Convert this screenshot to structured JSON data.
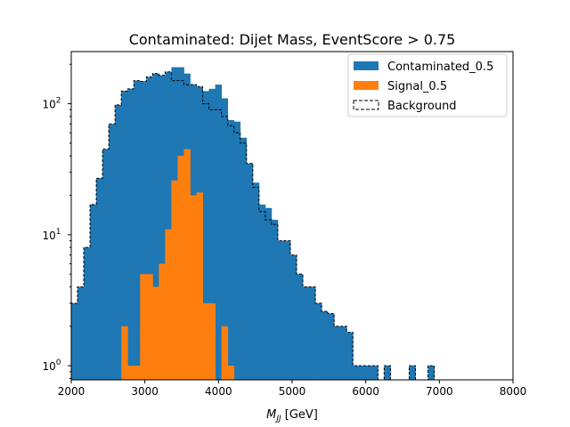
{
  "chart_data": {
    "type": "histogram",
    "title": "Contaminated: Dijet Mass, EventScore > 0.75",
    "xlabel_main": "M",
    "xlabel_sub": "JJ",
    "xlabel_unit": " [GeV]",
    "xlim": [
      2000,
      8000
    ],
    "ylim": [
      0.78,
      250
    ],
    "yscale": "log",
    "grid": false,
    "legend_position": "top-right",
    "x_ticks": [
      2000,
      3000,
      4000,
      5000,
      6000,
      7000,
      8000
    ],
    "x_tick_labels": [
      "2000",
      "3000",
      "4000",
      "5000",
      "6000",
      "7000",
      "8000"
    ],
    "y_ticks": [
      1,
      10,
      100
    ],
    "y_tick_base": "10",
    "y_tick_exponents": [
      "0",
      "1",
      "2"
    ],
    "bin_start": 2000,
    "bin_width": 85,
    "series": [
      {
        "name": "Contaminated_0.5",
        "style": "filled",
        "color": "#1f77b4",
        "values": [
          3,
          4,
          8,
          17,
          27,
          45,
          70,
          98,
          125,
          130,
          150,
          148,
          160,
          170,
          165,
          175,
          190,
          190,
          170,
          140,
          135,
          125,
          130,
          140,
          110,
          75,
          73,
          55,
          35,
          25,
          17,
          16,
          13,
          9,
          9,
          7,
          5,
          4,
          4,
          3,
          2.6,
          2.5,
          2,
          2,
          1.8,
          1,
          1,
          1,
          1,
          0,
          1,
          0,
          0,
          0,
          1,
          0,
          0,
          1,
          0,
          0,
          0,
          0,
          0,
          0,
          0,
          0,
          0,
          0,
          0,
          0
        ]
      },
      {
        "name": "Signal_0.5",
        "style": "filled",
        "color": "#ff7f0e",
        "values": [
          0,
          0,
          0,
          0,
          0,
          0,
          0,
          0,
          2,
          1,
          1,
          5,
          5,
          4,
          6,
          11,
          26,
          40,
          45,
          20,
          21,
          3,
          3,
          0,
          2,
          1,
          0,
          0,
          0,
          0,
          0,
          0,
          0,
          0,
          0,
          0,
          0,
          0,
          0,
          0,
          0,
          0,
          0,
          0,
          0,
          0,
          0,
          0,
          0,
          0,
          0,
          0,
          0,
          0,
          0,
          0,
          0,
          0,
          0,
          0,
          0,
          0,
          0,
          0,
          0,
          0,
          0,
          0,
          0,
          0,
          0
        ]
      },
      {
        "name": "Background",
        "style": "dashed-step",
        "color": "#000000",
        "values": [
          3,
          4,
          8,
          17,
          27,
          45,
          70,
          98,
          125,
          130,
          150,
          148,
          160,
          170,
          165,
          175,
          150,
          150,
          140,
          140,
          135,
          100,
          90,
          90,
          80,
          68,
          60,
          50,
          35,
          23,
          15,
          13,
          12,
          9,
          9,
          7,
          5,
          4,
          4,
          3,
          2.6,
          2.5,
          2,
          2,
          1.8,
          1,
          1,
          1,
          1,
          0,
          1,
          0,
          0,
          0,
          1,
          0,
          0,
          1,
          0,
          0,
          0,
          0,
          0,
          0,
          0,
          0,
          0,
          0,
          0,
          0
        ]
      }
    ]
  }
}
